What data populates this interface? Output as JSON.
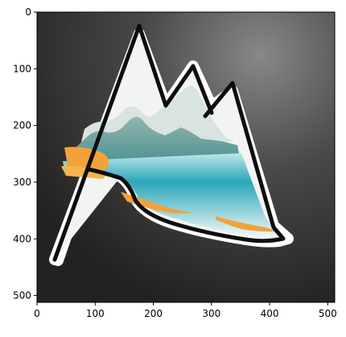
{
  "figure": {
    "x_ticks": [
      "0",
      "100",
      "200",
      "300",
      "400",
      "500"
    ],
    "y_ticks": [
      "0",
      "100",
      "200",
      "300",
      "400",
      "500"
    ],
    "x_tick_values": [
      0,
      100,
      200,
      300,
      400,
      500
    ],
    "y_tick_values": [
      0,
      100,
      200,
      300,
      400,
      500
    ],
    "x_range": [
      0,
      512
    ],
    "y_range": [
      512,
      0
    ]
  },
  "image": {
    "subject": "mountain-landscape-sticker",
    "colors": {
      "background": "#3a3836",
      "sticker_border": "#ffffff",
      "outline": "#0e0e0e",
      "sky": "#f2f4f1",
      "mountain": "#7fa6a0",
      "water": "#2aa6b8",
      "sand": "#f2a23a"
    }
  }
}
